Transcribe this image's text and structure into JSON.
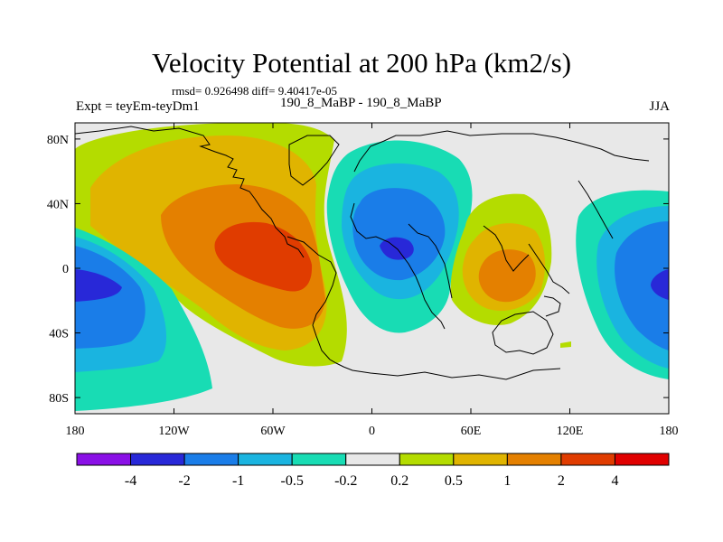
{
  "chart_data": {
    "type": "heatmap",
    "title": "Velocity Potential at 200 hPa (km2/s)",
    "stats_text": "rmsd= 0.926498 diff= 9.40417e-05",
    "left_label": "Expt = teyEm-teyDm1",
    "center_label": "190_8_MaBP - 190_8_MaBP",
    "right_label": "JJA",
    "x_range": [
      -180,
      180
    ],
    "y_range": [
      -90,
      90
    ],
    "x_ticks": [
      -180,
      -120,
      -60,
      0,
      60,
      120,
      180
    ],
    "x_tick_labels": [
      "180",
      "120W",
      "60W",
      "0",
      "60E",
      "120E",
      "180"
    ],
    "y_ticks": [
      80,
      40,
      0,
      -40,
      -80
    ],
    "y_tick_labels": [
      "80N",
      "40N",
      "0",
      "40S",
      "80S"
    ],
    "colorbar_levels": [
      "-4",
      "-2",
      "-1",
      "-0.5",
      "-0.2",
      "0.2",
      "0.5",
      "1",
      "2",
      "4"
    ],
    "colorbar_colors": [
      "#8a10e6",
      "#2828d8",
      "#1a7de8",
      "#1ab4e0",
      "#18dcb4",
      "#e8e8e8",
      "#b4dc00",
      "#e0b400",
      "#e48000",
      "#e03c00",
      "#e00000"
    ],
    "field_centers": [
      {
        "name": "positive-max-south-america",
        "lon": -70,
        "lat": 8,
        "value": 3.2
      },
      {
        "name": "negative-min-africa",
        "lon": 15,
        "lat": 14,
        "value": -2.3
      },
      {
        "name": "positive-max-indian-ocean",
        "lon": 80,
        "lat": -5,
        "value": 1.6
      },
      {
        "name": "negative-min-central-pacific",
        "lon": -170,
        "lat": -12,
        "value": -2.4
      },
      {
        "name": "negative-min-west-pacific",
        "lon": 178,
        "lat": -10,
        "value": -2.4
      }
    ]
  }
}
